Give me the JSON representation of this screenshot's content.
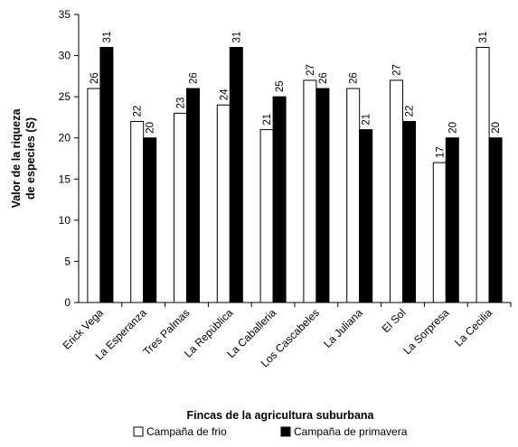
{
  "chart_data": {
    "type": "bar",
    "title": "",
    "xlabel": "Fincas de la agricultura suburbana",
    "ylabel_lines": [
      "Valor de la riqueza",
      "de especies (S)"
    ],
    "ylim": [
      0,
      35
    ],
    "yticks": [
      0,
      5,
      10,
      15,
      20,
      25,
      30,
      35
    ],
    "grid": false,
    "legend_position": "bottom",
    "categories": [
      "Erick Vega",
      "La Esperanza",
      "Tres Palmas",
      "La República",
      "La Caballeria",
      "Los Cascabeles",
      "La Juliana",
      "El Sol",
      "La Sorpresa",
      "La Cecilia"
    ],
    "series": [
      {
        "name": "Campaña de frio",
        "color": "#ffffff",
        "values": [
          26,
          22,
          23,
          24,
          21,
          27,
          26,
          27,
          17,
          31
        ]
      },
      {
        "name": "Campaña de primavera",
        "color": "#000000",
        "values": [
          31,
          20,
          26,
          31,
          25,
          26,
          21,
          22,
          20,
          20
        ]
      }
    ]
  }
}
